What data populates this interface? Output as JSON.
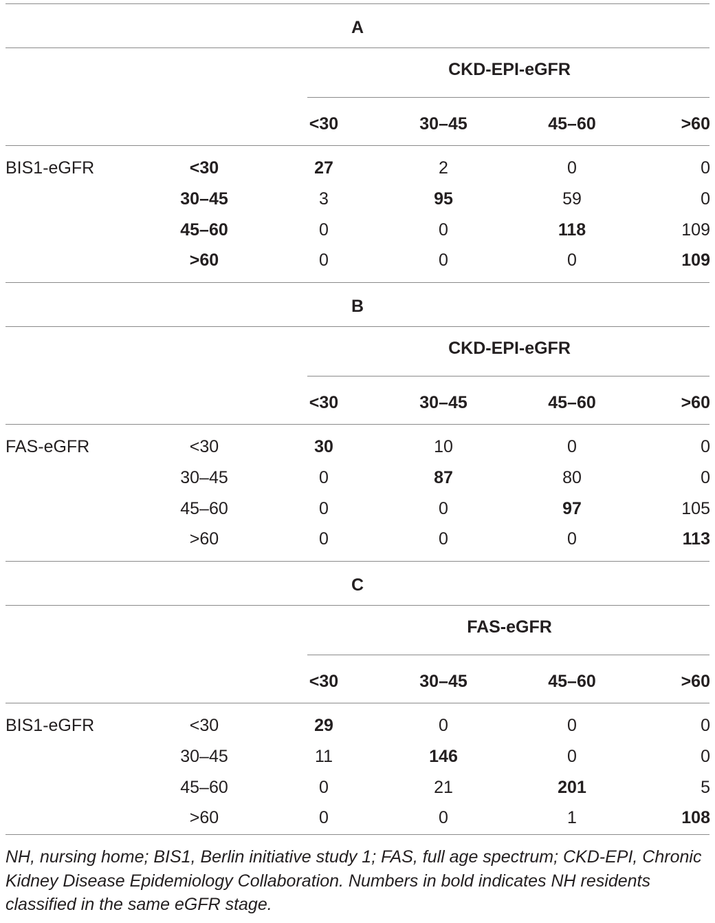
{
  "sections": [
    {
      "label": "A",
      "column_group": "CKD-EPI-eGFR",
      "columns": [
        "<30",
        "30–45",
        "45–60",
        ">60"
      ],
      "row_group": "BIS1-eGFR",
      "row_labels_bold": true,
      "rows": [
        {
          "label": "<30",
          "values": [
            "27",
            "2",
            "0",
            "0"
          ],
          "bold_index": 0
        },
        {
          "label": "30–45",
          "values": [
            "3",
            "95",
            "59",
            "0"
          ],
          "bold_index": 1
        },
        {
          "label": "45–60",
          "values": [
            "0",
            "0",
            "118",
            "109"
          ],
          "bold_index": 2
        },
        {
          "label": ">60",
          "values": [
            "0",
            "0",
            "0",
            "109"
          ],
          "bold_index": 3
        }
      ]
    },
    {
      "label": "B",
      "column_group": "CKD-EPI-eGFR",
      "columns": [
        "<30",
        "30–45",
        "45–60",
        ">60"
      ],
      "row_group": "FAS-eGFR",
      "row_labels_bold": false,
      "rows": [
        {
          "label": "<30",
          "values": [
            "30",
            "10",
            "0",
            "0"
          ],
          "bold_index": 0
        },
        {
          "label": "30–45",
          "values": [
            "0",
            "87",
            "80",
            "0"
          ],
          "bold_index": 1
        },
        {
          "label": "45–60",
          "values": [
            "0",
            "0",
            "97",
            "105"
          ],
          "bold_index": 2
        },
        {
          "label": ">60",
          "values": [
            "0",
            "0",
            "0",
            "113"
          ],
          "bold_index": 3
        }
      ]
    },
    {
      "label": "C",
      "column_group": "FAS-eGFR",
      "columns": [
        "<30",
        "30–45",
        "45–60",
        ">60"
      ],
      "row_group": "BIS1-eGFR",
      "row_labels_bold": false,
      "rows": [
        {
          "label": "<30",
          "values": [
            "29",
            "0",
            "0",
            "0"
          ],
          "bold_index": 0
        },
        {
          "label": "30–45",
          "values": [
            "11",
            "146",
            "0",
            "0"
          ],
          "bold_index": 1
        },
        {
          "label": "45–60",
          "values": [
            "0",
            "21",
            "201",
            "5"
          ],
          "bold_index": 2
        },
        {
          "label": ">60",
          "values": [
            "0",
            "0",
            "1",
            "108"
          ],
          "bold_index": 3
        }
      ]
    }
  ],
  "footnote": "NH, nursing home; BIS1, Berlin initiative study 1; FAS, full age spectrum; CKD-EPI, Chronic Kidney Disease Epidemiology Collaboration. Numbers in bold indicates NH residents classified in the same eGFR stage."
}
